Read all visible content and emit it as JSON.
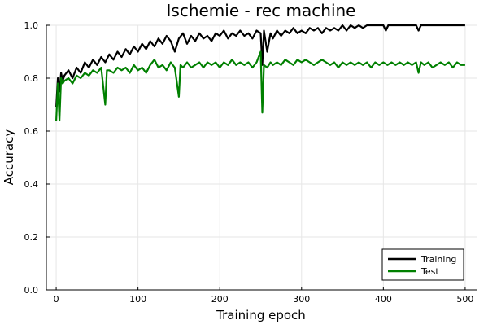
{
  "chart_data": {
    "type": "line",
    "title": "Ischemie - rec machine",
    "xlabel": "Training epoch",
    "ylabel": "Accuracy",
    "xlim": [
      -12,
      515
    ],
    "ylim": [
      0,
      1
    ],
    "x_ticks": [
      0,
      100,
      200,
      300,
      400,
      500
    ],
    "y_ticks": [
      0.0,
      0.2,
      0.4,
      0.6,
      0.8,
      1.0
    ],
    "x_tick_labels": [
      "0",
      "100",
      "200",
      "300",
      "400",
      "500"
    ],
    "y_tick_labels": [
      "0.0",
      "0.2",
      "0.4",
      "0.6",
      "0.8",
      "1.0"
    ],
    "grid": true,
    "legend_position": "bottom-right",
    "series": [
      {
        "name": "Training",
        "color": "#000000",
        "points": [
          [
            0,
            0.69
          ],
          [
            2,
            0.8
          ],
          [
            4,
            0.75
          ],
          [
            6,
            0.82
          ],
          [
            8,
            0.79
          ],
          [
            10,
            0.81
          ],
          [
            15,
            0.83
          ],
          [
            20,
            0.8
          ],
          [
            25,
            0.84
          ],
          [
            30,
            0.82
          ],
          [
            35,
            0.86
          ],
          [
            40,
            0.84
          ],
          [
            45,
            0.87
          ],
          [
            50,
            0.85
          ],
          [
            55,
            0.88
          ],
          [
            60,
            0.86
          ],
          [
            65,
            0.89
          ],
          [
            70,
            0.87
          ],
          [
            75,
            0.9
          ],
          [
            80,
            0.88
          ],
          [
            85,
            0.91
          ],
          [
            90,
            0.89
          ],
          [
            95,
            0.92
          ],
          [
            100,
            0.9
          ],
          [
            105,
            0.93
          ],
          [
            110,
            0.91
          ],
          [
            115,
            0.94
          ],
          [
            120,
            0.92
          ],
          [
            125,
            0.95
          ],
          [
            130,
            0.93
          ],
          [
            135,
            0.96
          ],
          [
            140,
            0.94
          ],
          [
            145,
            0.9
          ],
          [
            150,
            0.95
          ],
          [
            155,
            0.97
          ],
          [
            160,
            0.93
          ],
          [
            165,
            0.96
          ],
          [
            170,
            0.94
          ],
          [
            175,
            0.97
          ],
          [
            180,
            0.95
          ],
          [
            185,
            0.96
          ],
          [
            190,
            0.94
          ],
          [
            195,
            0.97
          ],
          [
            200,
            0.96
          ],
          [
            205,
            0.98
          ],
          [
            210,
            0.95
          ],
          [
            215,
            0.97
          ],
          [
            220,
            0.96
          ],
          [
            225,
            0.98
          ],
          [
            230,
            0.96
          ],
          [
            235,
            0.97
          ],
          [
            240,
            0.95
          ],
          [
            245,
            0.98
          ],
          [
            250,
            0.97
          ],
          [
            252,
            0.85
          ],
          [
            254,
            0.98
          ],
          [
            258,
            0.9
          ],
          [
            262,
            0.97
          ],
          [
            265,
            0.95
          ],
          [
            270,
            0.98
          ],
          [
            275,
            0.96
          ],
          [
            280,
            0.98
          ],
          [
            285,
            0.97
          ],
          [
            290,
            0.99
          ],
          [
            295,
            0.97
          ],
          [
            300,
            0.98
          ],
          [
            305,
            0.97
          ],
          [
            310,
            0.99
          ],
          [
            315,
            0.98
          ],
          [
            320,
            0.99
          ],
          [
            325,
            0.97
          ],
          [
            330,
            0.99
          ],
          [
            335,
            0.98
          ],
          [
            340,
            0.99
          ],
          [
            345,
            0.98
          ],
          [
            350,
            1.0
          ],
          [
            355,
            0.98
          ],
          [
            360,
            1.0
          ],
          [
            365,
            0.99
          ],
          [
            370,
            1.0
          ],
          [
            375,
            0.99
          ],
          [
            380,
            1.0
          ],
          [
            385,
            1.0
          ],
          [
            390,
            1.0
          ],
          [
            400,
            1.0
          ],
          [
            403,
            0.98
          ],
          [
            406,
            1.0
          ],
          [
            420,
            1.0
          ],
          [
            440,
            1.0
          ],
          [
            443,
            0.98
          ],
          [
            446,
            1.0
          ],
          [
            500,
            1.0
          ]
        ]
      },
      {
        "name": "Test",
        "color": "#008000",
        "points": [
          [
            0,
            0.64
          ],
          [
            2,
            0.78
          ],
          [
            4,
            0.64
          ],
          [
            6,
            0.8
          ],
          [
            8,
            0.78
          ],
          [
            10,
            0.79
          ],
          [
            15,
            0.8
          ],
          [
            20,
            0.78
          ],
          [
            25,
            0.81
          ],
          [
            30,
            0.8
          ],
          [
            35,
            0.82
          ],
          [
            40,
            0.81
          ],
          [
            45,
            0.83
          ],
          [
            50,
            0.82
          ],
          [
            55,
            0.84
          ],
          [
            60,
            0.7
          ],
          [
            62,
            0.83
          ],
          [
            65,
            0.83
          ],
          [
            70,
            0.82
          ],
          [
            75,
            0.84
          ],
          [
            80,
            0.83
          ],
          [
            85,
            0.84
          ],
          [
            90,
            0.82
          ],
          [
            95,
            0.85
          ],
          [
            100,
            0.83
          ],
          [
            105,
            0.84
          ],
          [
            110,
            0.82
          ],
          [
            115,
            0.85
          ],
          [
            120,
            0.87
          ],
          [
            125,
            0.84
          ],
          [
            130,
            0.85
          ],
          [
            135,
            0.83
          ],
          [
            140,
            0.86
          ],
          [
            145,
            0.84
          ],
          [
            150,
            0.73
          ],
          [
            152,
            0.85
          ],
          [
            155,
            0.84
          ],
          [
            160,
            0.86
          ],
          [
            165,
            0.84
          ],
          [
            170,
            0.85
          ],
          [
            175,
            0.86
          ],
          [
            180,
            0.84
          ],
          [
            185,
            0.86
          ],
          [
            190,
            0.85
          ],
          [
            195,
            0.86
          ],
          [
            200,
            0.84
          ],
          [
            205,
            0.86
          ],
          [
            210,
            0.85
          ],
          [
            215,
            0.87
          ],
          [
            220,
            0.85
          ],
          [
            225,
            0.86
          ],
          [
            230,
            0.85
          ],
          [
            235,
            0.86
          ],
          [
            240,
            0.84
          ],
          [
            245,
            0.86
          ],
          [
            250,
            0.9
          ],
          [
            252,
            0.67
          ],
          [
            254,
            0.85
          ],
          [
            258,
            0.84
          ],
          [
            262,
            0.86
          ],
          [
            265,
            0.85
          ],
          [
            270,
            0.86
          ],
          [
            275,
            0.85
          ],
          [
            280,
            0.87
          ],
          [
            285,
            0.86
          ],
          [
            290,
            0.85
          ],
          [
            295,
            0.87
          ],
          [
            300,
            0.86
          ],
          [
            305,
            0.87
          ],
          [
            310,
            0.86
          ],
          [
            315,
            0.85
          ],
          [
            320,
            0.86
          ],
          [
            325,
            0.87
          ],
          [
            330,
            0.86
          ],
          [
            335,
            0.85
          ],
          [
            340,
            0.86
          ],
          [
            345,
            0.84
          ],
          [
            350,
            0.86
          ],
          [
            355,
            0.85
          ],
          [
            360,
            0.86
          ],
          [
            365,
            0.85
          ],
          [
            370,
            0.86
          ],
          [
            375,
            0.85
          ],
          [
            380,
            0.86
          ],
          [
            385,
            0.84
          ],
          [
            390,
            0.86
          ],
          [
            395,
            0.85
          ],
          [
            400,
            0.86
          ],
          [
            405,
            0.85
          ],
          [
            410,
            0.86
          ],
          [
            415,
            0.85
          ],
          [
            420,
            0.86
          ],
          [
            425,
            0.85
          ],
          [
            430,
            0.86
          ],
          [
            435,
            0.85
          ],
          [
            440,
            0.86
          ],
          [
            443,
            0.82
          ],
          [
            446,
            0.86
          ],
          [
            450,
            0.85
          ],
          [
            455,
            0.86
          ],
          [
            460,
            0.84
          ],
          [
            465,
            0.85
          ],
          [
            470,
            0.86
          ],
          [
            475,
            0.85
          ],
          [
            480,
            0.86
          ],
          [
            485,
            0.84
          ],
          [
            490,
            0.86
          ],
          [
            495,
            0.85
          ],
          [
            500,
            0.85
          ]
        ]
      }
    ]
  }
}
